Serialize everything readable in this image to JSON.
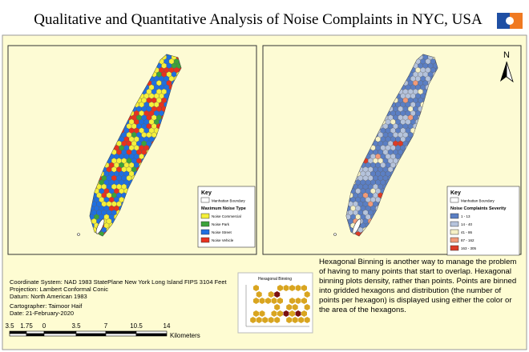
{
  "header": {
    "title": "Qualitative and Quantitative Analysis of Noise Complaints in NYC, USA"
  },
  "north_arrow": {
    "label": "N"
  },
  "maps": [
    {
      "legend": {
        "title": "Key",
        "boundary": "Manhattan Boundary",
        "heading": "Maximum Noise Type",
        "items": [
          {
            "label": "Noise Commercial",
            "color": "#f5f03a"
          },
          {
            "label": "Noise Park",
            "color": "#3ca33a"
          },
          {
            "label": "Noise Street",
            "color": "#1f6fe0"
          },
          {
            "label": "Noise Vehicle",
            "color": "#e8321e"
          }
        ]
      }
    },
    {
      "legend": {
        "title": "Key",
        "boundary": "Manhattan Boundary",
        "heading": "Noise Complaints Severity",
        "items": [
          {
            "label": "1 - 13",
            "color": "#5b7fc4"
          },
          {
            "label": "14 - 40",
            "color": "#b5c3dc"
          },
          {
            "label": "41 - 86",
            "color": "#f6f1c6"
          },
          {
            "label": "87 - 162",
            "color": "#f29a78"
          },
          {
            "label": "163 - 305",
            "color": "#dc3b26"
          }
        ]
      }
    }
  ],
  "info": {
    "lines": [
      "Coordinate System: NAD 1983 StatePlane New York Long Island FIPS 3104 Feet",
      "Projection: Lambert Conformal Conic",
      "Datum: North American 1983"
    ],
    "cartographer": [
      "Cartographer: Taimoor Haif",
      "Date: 21-February-2020"
    ]
  },
  "scale_bar": {
    "labels": [
      "3.5",
      "1.75",
      "0",
      "3.5",
      "7",
      "10.5",
      "14"
    ],
    "unit": "Kilometers"
  },
  "inset": {
    "title": "Hexagonal Binning"
  },
  "description": "Hexagonal Binning is another way to manage the problem of having to many points that start to overlap. Hexagonal binning plots density, rather than points. Points are binned into gridded hexagons and distribution (the number of points per hexagon) is displayed using either the color or the area of the hexagons."
}
